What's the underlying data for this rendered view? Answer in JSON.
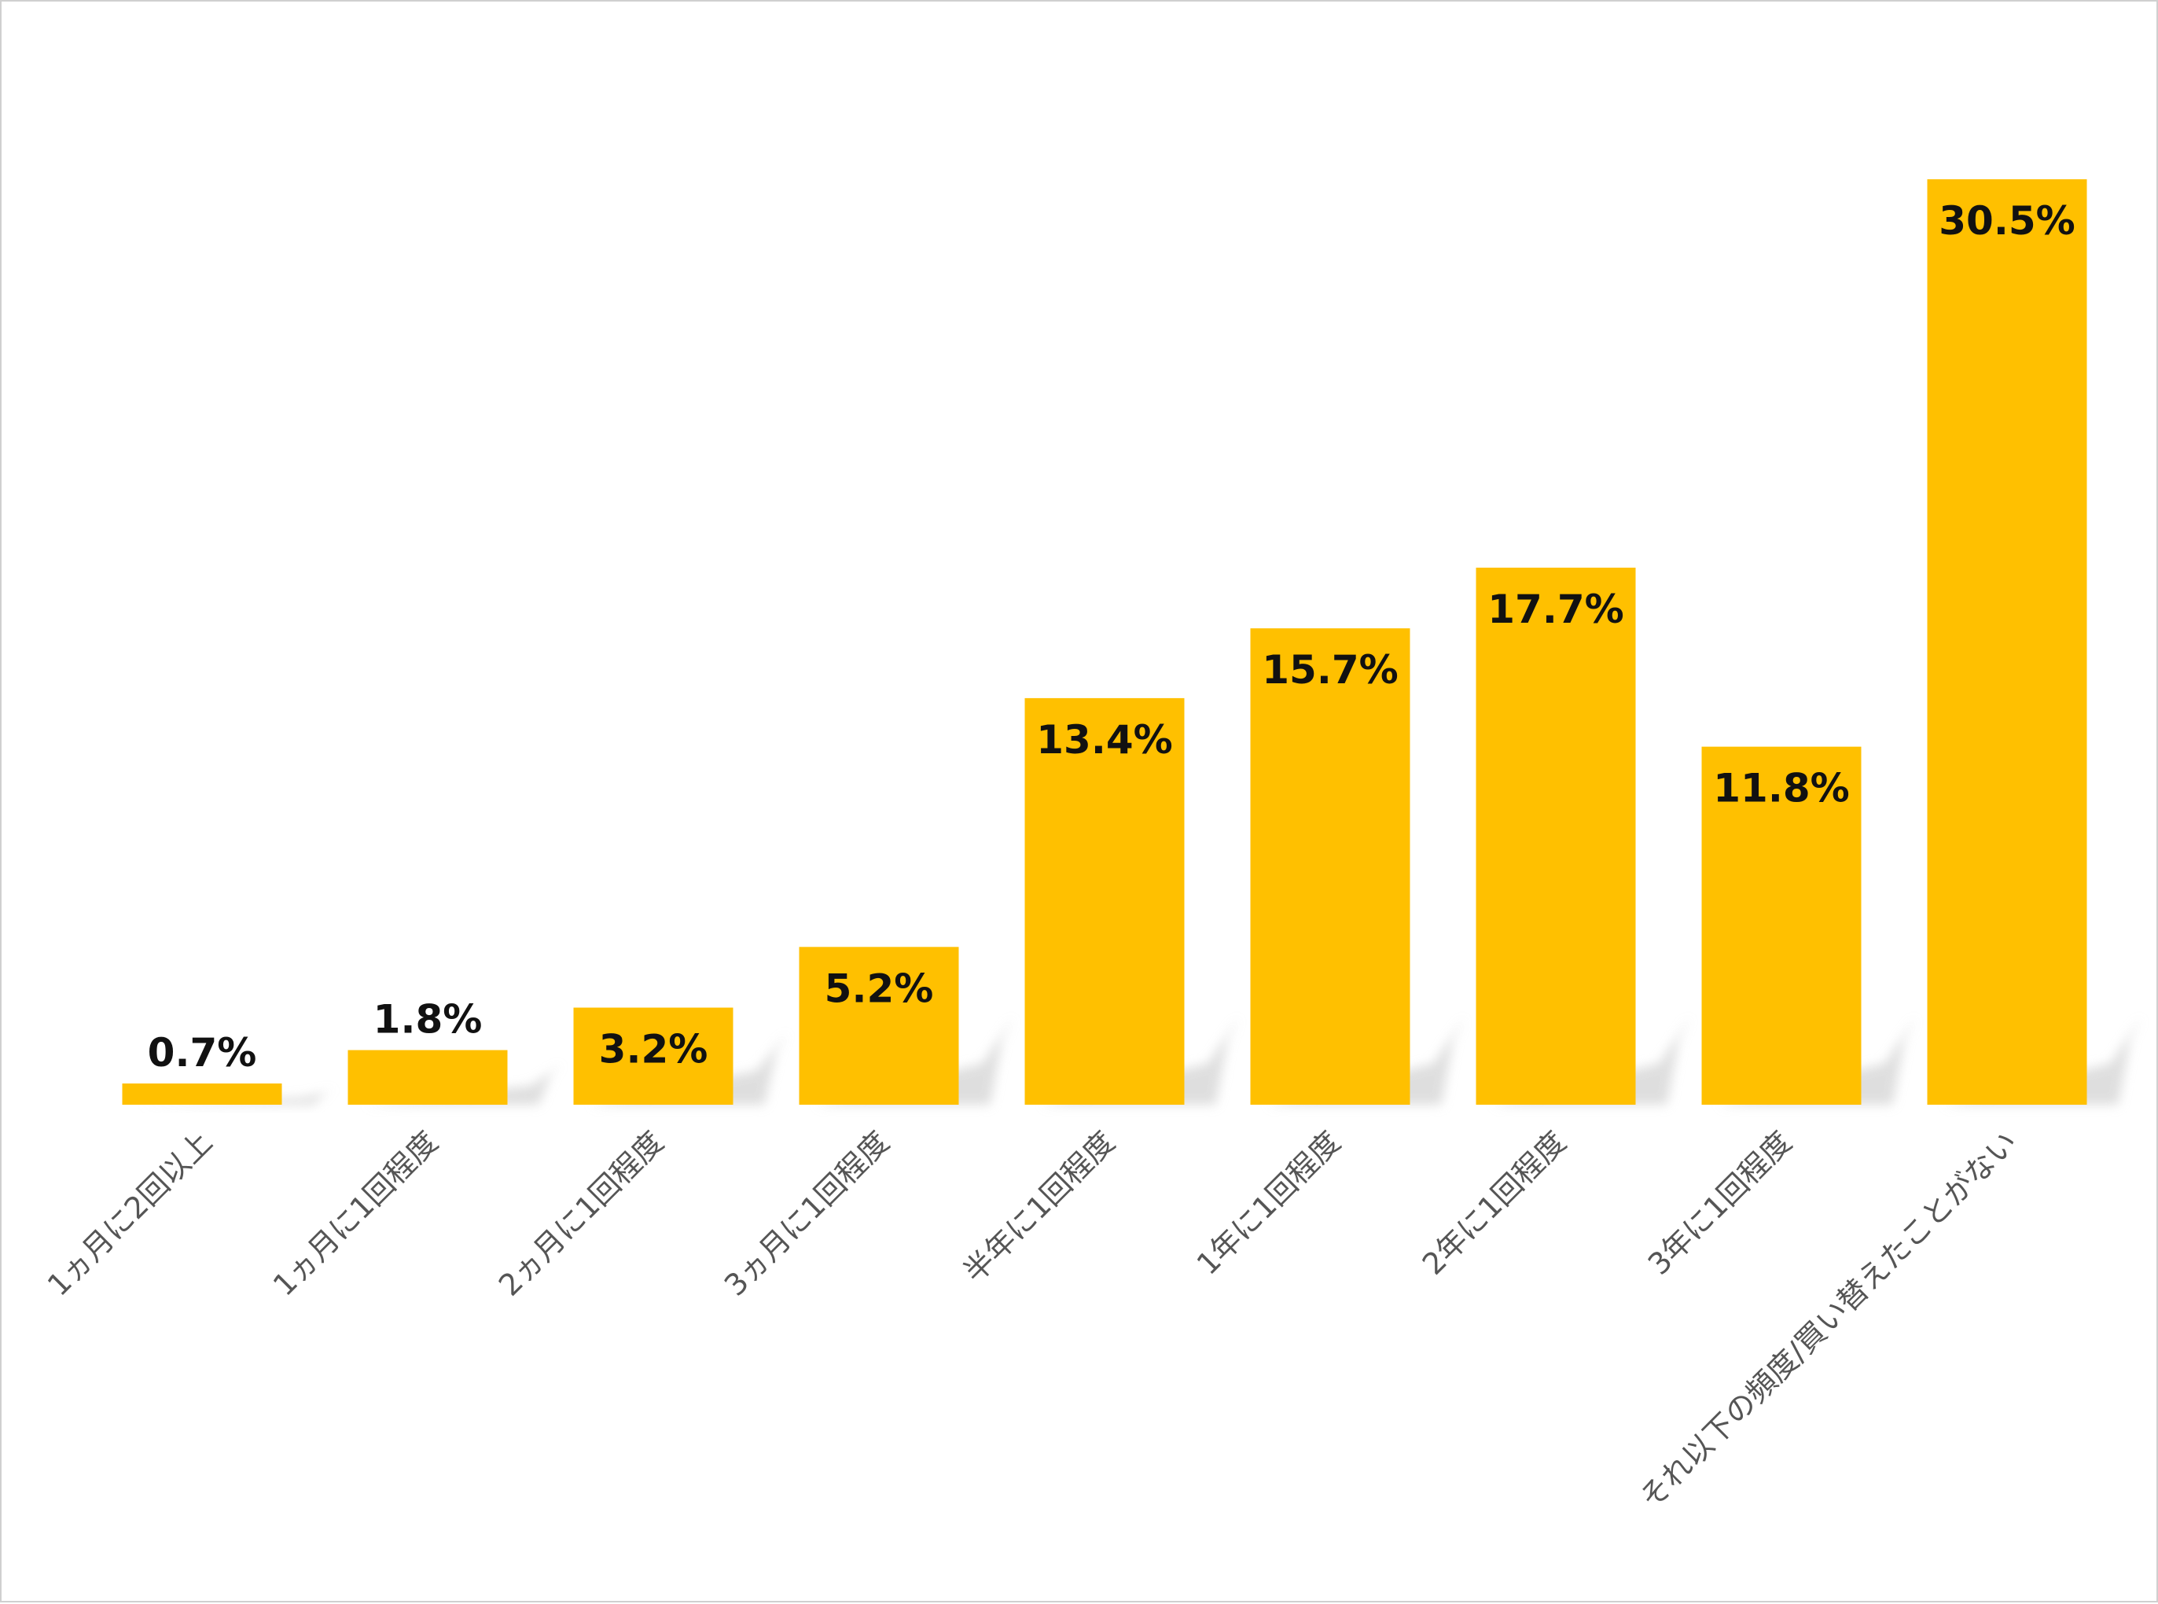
{
  "chart_data": {
    "type": "bar",
    "categories": [
      "1ヵ月に2回以上",
      "1ヵ月に1回程度",
      "2ヵ月に1回程度",
      "3ヵ月に1回程度",
      "半年に1回程度",
      "1年に1回程度",
      "2年に1回程度",
      "3年に1回程度",
      "それ以下の頻度/買い替えたことがない"
    ],
    "values": [
      0.7,
      1.8,
      3.2,
      5.2,
      13.4,
      15.7,
      17.7,
      11.8,
      30.5
    ],
    "data_labels": [
      "0.7%",
      "1.8%",
      "3.2%",
      "5.2%",
      "13.4%",
      "15.7%",
      "17.7%",
      "11.8%",
      "30.5%"
    ],
    "title": "",
    "xlabel": "",
    "ylabel": "",
    "ylim": [
      0,
      30.5
    ],
    "grid": false,
    "legend": "none",
    "bar_color": "#FFC000",
    "shadow_color": "#d9d9d9"
  }
}
